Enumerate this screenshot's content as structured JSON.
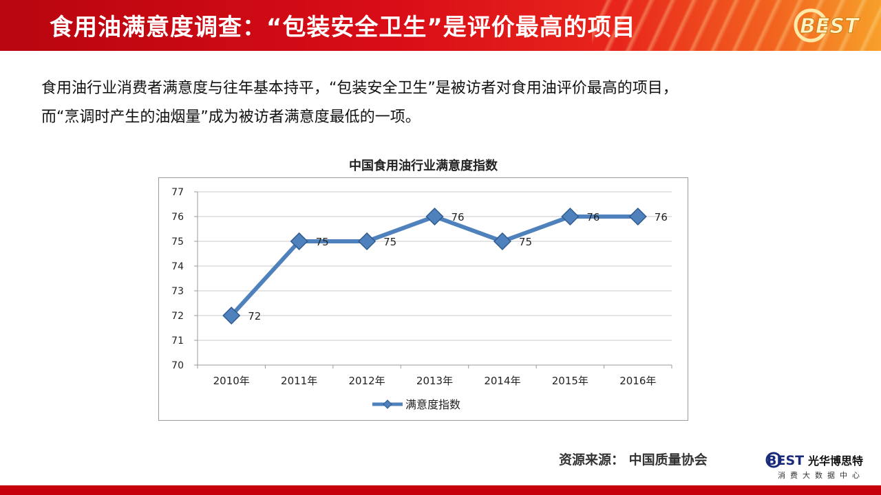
{
  "header": {
    "title": "食用油满意度调查：“包装安全卫生”是评价最高的项目",
    "logo_text": "BEST"
  },
  "body": {
    "line1": "食用油行业消费者满意度与往年基本持平，“包装安全卫生”是被访者对食用油评价最高的项目，",
    "line2": "而“烹调时产生的油烟量”成为被访者满意度最低的一项。"
  },
  "chart_data": {
    "type": "line",
    "title": "中国食用油行业满意度指数",
    "categories": [
      "2010年",
      "2011年",
      "2012年",
      "2013年",
      "2014年",
      "2015年",
      "2016年"
    ],
    "series": [
      {
        "name": "满意度指数",
        "values": [
          72,
          75,
          75,
          76,
          75,
          76,
          76
        ]
      }
    ],
    "ylim": [
      70,
      77
    ],
    "yticks": [
      70,
      71,
      72,
      73,
      74,
      75,
      76,
      77
    ],
    "grid": true,
    "legend": "bottom",
    "data_labels": true,
    "line_color": "#4f81bd",
    "marker": "diamond"
  },
  "footer": {
    "source": "资源来源：  中国质量协会",
    "brand_mark": "BEST",
    "brand_name": "光华博思特",
    "brand_tagline": "消费大数据中心"
  },
  "colors": {
    "header_red": "#c5000b",
    "accent_orange": "#f7a02a",
    "series_blue": "#4f81bd"
  }
}
